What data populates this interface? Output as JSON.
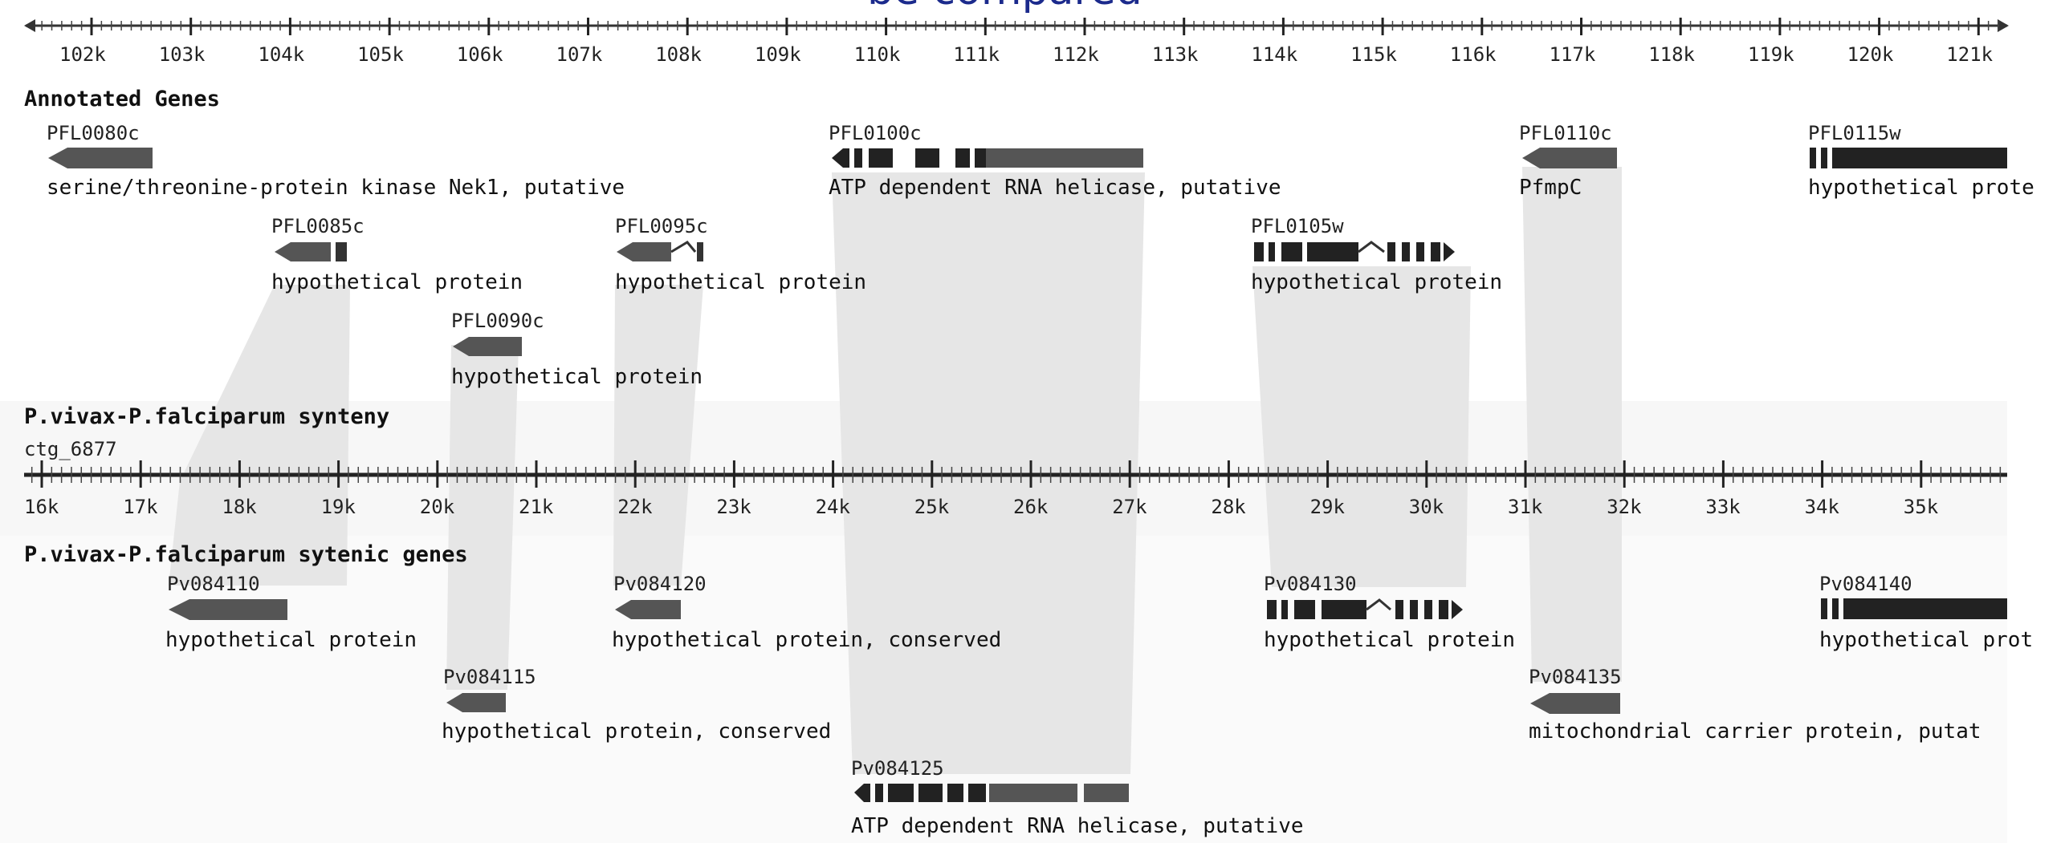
{
  "page_title": "be compared",
  "top_axis": {
    "ticks": [
      "102k",
      "103k",
      "104k",
      "105k",
      "106k",
      "107k",
      "108k",
      "109k",
      "110k",
      "111k",
      "112k",
      "113k",
      "114k",
      "115k",
      "116k",
      "117k",
      "118k",
      "119k",
      "120k",
      "121k"
    ]
  },
  "annotated_section": {
    "title": "Annotated Genes",
    "genes": [
      {
        "id": "PFL0080c",
        "desc": "serine/threonine-protein kinase Nek1, putative"
      },
      {
        "id": "PFL0085c",
        "desc": "hypothetical protein"
      },
      {
        "id": "PFL0090c",
        "desc": "hypothetical protein"
      },
      {
        "id": "PFL0095c",
        "desc": "hypothetical protein"
      },
      {
        "id": "PFL0100c",
        "desc": "ATP dependent RNA helicase, putative"
      },
      {
        "id": "PFL0105w",
        "desc": "hypothetical protein"
      },
      {
        "id": "PFL0110c",
        "desc": "PfmpC"
      },
      {
        "id": "PFL0115w",
        "desc": "hypothetical prote"
      }
    ]
  },
  "synteny_section": {
    "title": "P.vivax-P.falciparum synteny",
    "contig": "ctg_6877",
    "ticks": [
      "16k",
      "17k",
      "18k",
      "19k",
      "20k",
      "21k",
      "22k",
      "23k",
      "24k",
      "25k",
      "26k",
      "27k",
      "28k",
      "29k",
      "30k",
      "31k",
      "32k",
      "33k",
      "34k",
      "35k"
    ]
  },
  "syntenic_section": {
    "title": "P.vivax-P.falciparum sytenic genes",
    "genes": [
      {
        "id": "Pv084110",
        "desc": "hypothetical protein"
      },
      {
        "id": "Pv084115",
        "desc": "hypothetical protein, conserved"
      },
      {
        "id": "Pv084120",
        "desc": "hypothetical protein, conserved"
      },
      {
        "id": "Pv084125",
        "desc": "ATP dependent RNA helicase, putative"
      },
      {
        "id": "Pv084130",
        "desc": "hypothetical protein"
      },
      {
        "id": "Pv084135",
        "desc": "mitochondrial carrier protein, putat"
      },
      {
        "id": "Pv084140",
        "desc": "hypothetical prot"
      }
    ]
  },
  "colors": {
    "title": "#1b2a8c",
    "gene_fill": "#555555",
    "gene_dark": "#222222",
    "synteny_band": "#e3e3e3",
    "section_bg": "#f7f7f7",
    "text": "#111111"
  }
}
